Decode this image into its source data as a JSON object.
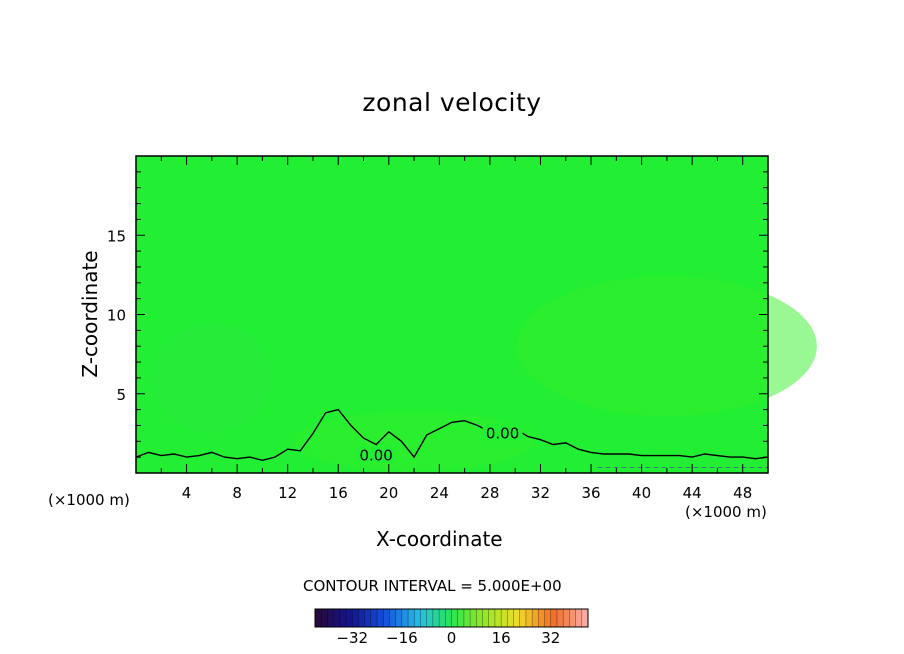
{
  "chart_data": {
    "type": "heatmap",
    "title": "zonal velocity",
    "xlabel": "X-coordinate",
    "ylabel": "Z-coordinate",
    "x_unit_left": "(×1000 m)",
    "x_unit_right": "(×1000 m)",
    "xlim": [
      0,
      50
    ],
    "ylim": [
      0,
      20
    ],
    "x_ticks": [
      4,
      8,
      12,
      16,
      20,
      24,
      28,
      32,
      36,
      40,
      44,
      48
    ],
    "y_ticks": [
      5,
      10,
      15
    ],
    "contour_labels": [
      {
        "text": "0.00",
        "x": 19,
        "z": 1.1
      },
      {
        "text": "0.00",
        "x": 29,
        "z": 2.5
      }
    ],
    "contour_interval_text": "CONTOUR INTERVAL = 5.000E+00",
    "colorbar": {
      "ticks": [
        -32,
        -16,
        0,
        16,
        32
      ],
      "tick_labels": [
        "−32",
        "−16",
        "0",
        "16",
        "32"
      ],
      "range": [
        -44,
        44
      ]
    },
    "field_color": "#22ee33",
    "zero_contour": [
      [
        0,
        1
      ],
      [
        1,
        1.3
      ],
      [
        2,
        1.1
      ],
      [
        3,
        1.2
      ],
      [
        4,
        1.0
      ],
      [
        5,
        1.1
      ],
      [
        6,
        1.3
      ],
      [
        7,
        1.0
      ],
      [
        8,
        0.9
      ],
      [
        9,
        1.0
      ],
      [
        10,
        0.8
      ],
      [
        11,
        1.0
      ],
      [
        12,
        1.5
      ],
      [
        13,
        1.4
      ],
      [
        14,
        2.5
      ],
      [
        15,
        3.8
      ],
      [
        16,
        4.0
      ],
      [
        17,
        3.0
      ],
      [
        18,
        2.2
      ],
      [
        19,
        1.8
      ],
      [
        20,
        2.6
      ],
      [
        21,
        2.0
      ],
      [
        22,
        1.0
      ],
      [
        23,
        2.4
      ],
      [
        24,
        2.8
      ],
      [
        25,
        3.2
      ],
      [
        26,
        3.3
      ],
      [
        27,
        3.0
      ],
      [
        28,
        2.6
      ],
      [
        29,
        2.7
      ],
      [
        30,
        2.8
      ],
      [
        31,
        2.3
      ],
      [
        32,
        2.1
      ],
      [
        33,
        1.8
      ],
      [
        34,
        1.9
      ],
      [
        35,
        1.5
      ],
      [
        36,
        1.3
      ],
      [
        37,
        1.2
      ],
      [
        38,
        1.2
      ],
      [
        39,
        1.2
      ],
      [
        40,
        1.1
      ],
      [
        41,
        1.1
      ],
      [
        42,
        1.1
      ],
      [
        43,
        1.1
      ],
      [
        44,
        1.0
      ],
      [
        45,
        1.2
      ],
      [
        46,
        1.1
      ],
      [
        47,
        1.0
      ],
      [
        48,
        1.0
      ],
      [
        49,
        0.9
      ],
      [
        50,
        1.0
      ]
    ]
  }
}
